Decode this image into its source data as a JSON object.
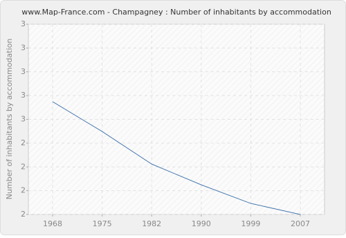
{
  "chart_data": {
    "type": "line",
    "title": "www.Map-France.com - Champagney : Number of inhabitants by accommodation",
    "y_label": "Number of inhabitants by accommodation",
    "categories": [
      "1968",
      "1975",
      "1982",
      "1990",
      "1999",
      "2007"
    ],
    "series": [
      {
        "name": "Number of inhabitants by accommodation",
        "color": "#4a7ab0",
        "values": [
          2.593,
          2.436,
          2.265,
          2.156,
          2.058,
          2.0
        ]
      }
    ],
    "ylim": [
      2,
      3
    ],
    "yticks": [
      2,
      {
        "value": 2.125,
        "label": "2"
      },
      {
        "value": 2.25,
        "label": "2"
      },
      {
        "value": 2.375,
        "label": "2"
      },
      {
        "value": 2.5,
        "label": "3"
      },
      {
        "value": 2.625,
        "label": "3"
      },
      {
        "value": 2.75,
        "label": "3"
      },
      {
        "value": 2.875,
        "label": "3"
      },
      3
    ],
    "grid": true
  }
}
